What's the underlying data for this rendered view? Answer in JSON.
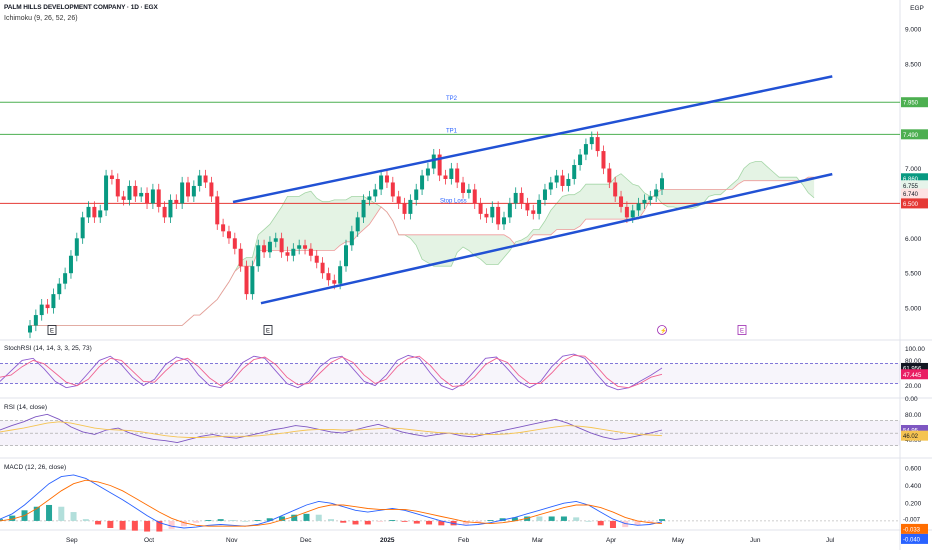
{
  "header": {
    "title": "PALM HILLS DEVELOPMENT COMPANY · 1D · EGX",
    "indicator": "Ichimoku (9, 26, 52, 26)",
    "currency": "EGP"
  },
  "colors": {
    "up": "#089981",
    "down": "#f23645",
    "trendline": "#2151d4",
    "target_line": "#4caf50",
    "stop_line": "#e53935",
    "stoch_k": "#8e5ccf",
    "stoch_d": "#f06292",
    "rsi": "#7e57c2",
    "rsi_ma": "#f5c451",
    "macd": "#2962ff",
    "signal": "#ff6d00",
    "cloud_bull": "#a5d6a7",
    "cloud_bear": "#ef9a9a"
  },
  "chart_data": [
    {
      "type": "line",
      "title": "PALM HILLS DEVELOPMENT COMPANY · 1D · EGX",
      "description_series": "candlestick (daily close approximated)",
      "y_ticks": [
        "9.000",
        "8.500",
        "7.000",
        "6.500",
        "6.000",
        "5.500",
        "5.000"
      ],
      "ylim": [
        4.6,
        9.3
      ],
      "x_ticks": [
        "Sep",
        "Oct",
        "Nov",
        "Dec",
        "2025",
        "Feb",
        "Mar",
        "Apr",
        "May",
        "Jun",
        "Jul"
      ],
      "close": [
        4.75,
        4.9,
        5.05,
        5.0,
        5.2,
        5.35,
        5.5,
        5.75,
        6.0,
        6.3,
        6.45,
        6.3,
        6.4,
        6.9,
        6.85,
        6.6,
        6.55,
        6.75,
        6.6,
        6.65,
        6.5,
        6.7,
        6.45,
        6.3,
        6.55,
        6.5,
        6.8,
        6.6,
        6.75,
        6.9,
        6.8,
        6.6,
        6.2,
        6.1,
        6.0,
        5.85,
        5.6,
        5.2,
        5.6,
        5.9,
        5.8,
        5.95,
        6.0,
        5.8,
        5.75,
        5.85,
        5.9,
        5.85,
        5.75,
        5.65,
        5.5,
        5.4,
        5.35,
        5.6,
        5.9,
        6.1,
        6.3,
        6.55,
        6.6,
        6.7,
        6.9,
        6.8,
        6.6,
        6.5,
        6.35,
        6.55,
        6.7,
        6.9,
        7.0,
        7.2,
        6.9,
        6.85,
        7.0,
        6.8,
        6.65,
        6.7,
        6.5,
        6.35,
        6.3,
        6.45,
        6.2,
        6.3,
        6.5,
        6.65,
        6.5,
        6.4,
        6.35,
        6.55,
        6.7,
        6.8,
        6.9,
        6.75,
        6.85,
        7.05,
        7.2,
        7.35,
        7.45,
        7.25,
        7.0,
        6.8,
        6.6,
        6.45,
        6.3,
        6.4,
        6.5,
        6.55,
        6.6,
        6.7,
        6.86
      ],
      "levels": [
        {
          "label": "TP2",
          "value": 7.95,
          "price_label": "7.950"
        },
        {
          "label": "TP1",
          "value": 7.49,
          "price_label": "7.490"
        },
        {
          "label": "Stop Loss",
          "value": 6.5,
          "price_label": "6.500"
        }
      ],
      "price_tags": [
        "6.860",
        "6.755",
        "6.740"
      ],
      "channel": {
        "upper": [
          {
            "date_index": 0.25,
            "price": 6.52
          },
          {
            "date_index": 0.893,
            "price": 8.32
          }
        ],
        "lower": [
          {
            "date_index": 0.28,
            "price": 5.07
          },
          {
            "date_index": 0.893,
            "price": 6.92
          }
        ]
      },
      "events": [
        "E",
        "E",
        "dividend",
        "E"
      ]
    },
    {
      "type": "line",
      "title": "StochRSI (14, 14, 3, 3, 25, 73)",
      "ylim": [
        0,
        100
      ],
      "y_ticks": [
        "80.00",
        "20.00"
      ],
      "bands": [
        73,
        25
      ],
      "series": [
        {
          "name": "K",
          "values": [
            30,
            55,
            80,
            85,
            60,
            30,
            15,
            20,
            50,
            80,
            90,
            70,
            40,
            20,
            35,
            70,
            88,
            80,
            45,
            20,
            15,
            40,
            75,
            90,
            85,
            55,
            25,
            15,
            30,
            65,
            85,
            90,
            60,
            30,
            20,
            45,
            80,
            92,
            85,
            50,
            20,
            10,
            25,
            55,
            85,
            88,
            60,
            30,
            15,
            30,
            65,
            90,
            95,
            85,
            50,
            20,
            10,
            15,
            30,
            45,
            62
          ]
        },
        {
          "name": "D",
          "values": [
            40,
            45,
            65,
            80,
            72,
            50,
            28,
            20,
            35,
            65,
            85,
            80,
            55,
            30,
            28,
            55,
            78,
            85,
            65,
            38,
            20,
            30,
            60,
            82,
            88,
            70,
            40,
            22,
            25,
            50,
            75,
            88,
            75,
            45,
            25,
            35,
            65,
            85,
            90,
            68,
            38,
            18,
            20,
            40,
            70,
            85,
            75,
            45,
            25,
            25,
            50,
            78,
            92,
            90,
            68,
            38,
            18,
            15,
            25,
            40,
            47
          ]
        }
      ],
      "last_values": [
        "61.956",
        "47.445"
      ]
    },
    {
      "type": "line",
      "title": "RSI (14, close)",
      "ylim": [
        20,
        90
      ],
      "y_ticks": [
        "80.00",
        "60.00",
        "40.00"
      ],
      "bands": [
        70,
        30
      ],
      "series": [
        {
          "name": "RSI",
          "values": [
            55,
            62,
            68,
            76,
            80,
            72,
            60,
            52,
            48,
            55,
            58,
            50,
            44,
            40,
            38,
            35,
            40,
            45,
            48,
            44,
            42,
            46,
            50,
            55,
            58,
            62,
            60,
            56,
            52,
            50,
            55,
            60,
            64,
            58,
            52,
            48,
            45,
            48,
            50,
            46,
            44,
            48,
            52,
            56,
            60,
            64,
            68,
            72,
            66,
            58,
            50,
            44,
            40,
            42,
            46,
            50,
            55
          ]
        },
        {
          "name": "MA",
          "values": [
            52,
            55,
            58,
            62,
            66,
            68,
            66,
            62,
            58,
            56,
            55,
            54,
            52,
            49,
            46,
            44,
            43,
            43,
            44,
            45,
            45,
            45,
            46,
            48,
            50,
            53,
            55,
            56,
            56,
            55,
            55,
            56,
            57,
            58,
            57,
            55,
            53,
            51,
            50,
            49,
            48,
            48,
            48,
            49,
            51,
            54,
            57,
            60,
            62,
            61,
            59,
            56,
            53,
            50,
            48,
            47,
            46
          ]
        }
      ],
      "last_values": [
        "54.95",
        "46.02"
      ]
    },
    {
      "type": "bar",
      "title": "MACD (12, 26, close)",
      "ylim": [
        -0.08,
        0.62
      ],
      "y_ticks": [
        "0.600",
        "0.400",
        "0.200"
      ],
      "series": [
        {
          "name": "MACD",
          "values": [
            0.02,
            0.08,
            0.18,
            0.3,
            0.42,
            0.5,
            0.52,
            0.48,
            0.4,
            0.32,
            0.24,
            0.15,
            0.06,
            -0.02,
            -0.06,
            -0.08,
            -0.07,
            -0.05,
            -0.04,
            -0.05,
            -0.06,
            -0.04,
            0.0,
            0.06,
            0.12,
            0.18,
            0.22,
            0.2,
            0.16,
            0.12,
            0.1,
            0.12,
            0.14,
            0.12,
            0.08,
            0.04,
            0.0,
            -0.03,
            -0.05,
            -0.04,
            -0.02,
            0.01,
            0.04,
            0.08,
            0.12,
            0.16,
            0.2,
            0.22,
            0.18,
            0.1,
            0.02,
            -0.03,
            -0.05,
            -0.04,
            -0.01
          ]
        },
        {
          "name": "Signal",
          "values": [
            0.0,
            0.02,
            0.06,
            0.14,
            0.24,
            0.34,
            0.42,
            0.46,
            0.44,
            0.4,
            0.34,
            0.26,
            0.18,
            0.1,
            0.03,
            -0.02,
            -0.05,
            -0.06,
            -0.06,
            -0.06,
            -0.06,
            -0.05,
            -0.03,
            0.01,
            0.05,
            0.1,
            0.15,
            0.18,
            0.18,
            0.16,
            0.14,
            0.13,
            0.13,
            0.13,
            0.11,
            0.08,
            0.05,
            0.02,
            -0.01,
            -0.02,
            -0.03,
            -0.02,
            0.0,
            0.03,
            0.07,
            0.11,
            0.15,
            0.18,
            0.18,
            0.15,
            0.1,
            0.04,
            0.0,
            -0.02,
            -0.03
          ]
        }
      ],
      "last_values": [
        "-0.007",
        "-0.033",
        "-0.040"
      ]
    }
  ]
}
